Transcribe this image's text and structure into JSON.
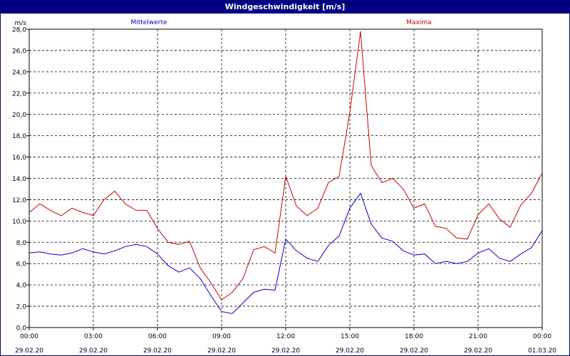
{
  "window": {
    "title": "Windgeschwindigkeit [m/s]"
  },
  "chart_data": {
    "type": "line",
    "title": "Windgeschwindigkeit [m/s]",
    "ylabel": "m/s",
    "ylim": [
      0,
      28
    ],
    "yticks": [
      "0,0",
      "2,0",
      "4,0",
      "6,0",
      "8,0",
      "10,0",
      "12,0",
      "14,0",
      "16,0",
      "18,0",
      "20,0",
      "22,0",
      "24,0",
      "26,0",
      "28,0"
    ],
    "xlim_hours": [
      0,
      24
    ],
    "xticks": [
      {
        "time": "00:00",
        "date": "29.02.20"
      },
      {
        "time": "03:00",
        "date": "29.02.20"
      },
      {
        "time": "06:00",
        "date": "29.02.20"
      },
      {
        "time": "09:00",
        "date": "29.02.20"
      },
      {
        "time": "12:00",
        "date": "29.02.20"
      },
      {
        "time": "15:00",
        "date": "29.02.20"
      },
      {
        "time": "18:00",
        "date": "29.02.20"
      },
      {
        "time": "21:00",
        "date": "29.02.20"
      },
      {
        "time": "00:00",
        "date": "01.03.20"
      }
    ],
    "grid": true,
    "legend_position": "top",
    "series": [
      {
        "name": "Mittelwerte",
        "color": "#0000cc",
        "x": [
          0,
          0.5,
          1,
          1.5,
          2,
          2.5,
          3,
          3.5,
          4,
          4.5,
          5,
          5.5,
          6,
          6.5,
          7,
          7.5,
          8,
          8.5,
          9,
          9.5,
          10,
          10.5,
          11,
          11.5,
          12,
          12.5,
          13,
          13.5,
          14,
          14.5,
          15,
          15.5,
          16,
          16.5,
          17,
          17.5,
          18,
          18.5,
          19,
          19.5,
          20,
          20.5,
          21,
          21.5,
          22,
          22.5,
          23,
          23.5,
          24
        ],
        "values": [
          7.0,
          7.1,
          6.9,
          6.8,
          7.0,
          7.4,
          7.1,
          6.9,
          7.2,
          7.6,
          7.8,
          7.6,
          6.9,
          5.8,
          5.2,
          5.6,
          4.6,
          3.0,
          1.5,
          1.3,
          2.3,
          3.3,
          3.6,
          3.5,
          8.3,
          7.2,
          6.5,
          6.2,
          7.7,
          8.6,
          11.2,
          12.6,
          9.7,
          8.4,
          8.1,
          7.2,
          6.8,
          6.9,
          6.0,
          6.2,
          6.0,
          6.2,
          7.0,
          7.4,
          6.5,
          6.2,
          6.9,
          7.5,
          9.1
        ]
      },
      {
        "name": "Maxima",
        "color": "#cc0000",
        "x": [
          0,
          0.5,
          1,
          1.5,
          2,
          2.5,
          3,
          3.5,
          4,
          4.5,
          5,
          5.5,
          6,
          6.5,
          7,
          7.5,
          8,
          8.5,
          9,
          9.5,
          10,
          10.5,
          11,
          11.5,
          12,
          12.5,
          13,
          13.5,
          14,
          14.5,
          15,
          15.5,
          16,
          16.5,
          17,
          17.5,
          18,
          18.5,
          19,
          19.5,
          20,
          20.5,
          21,
          21.5,
          22,
          22.5,
          23,
          23.5,
          24
        ],
        "values": [
          10.8,
          11.6,
          11.0,
          10.5,
          11.2,
          10.8,
          10.5,
          12.0,
          12.8,
          11.6,
          11.0,
          11.0,
          9.3,
          8.0,
          7.8,
          8.1,
          5.6,
          4.2,
          2.6,
          3.3,
          4.6,
          7.3,
          7.6,
          7.0,
          14.2,
          11.4,
          10.5,
          11.2,
          13.6,
          14.2,
          20.2,
          27.8,
          15.2,
          13.6,
          14.0,
          13.0,
          11.2,
          11.6,
          9.5,
          9.3,
          8.4,
          8.3,
          10.6,
          11.6,
          10.2,
          9.4,
          11.5,
          12.6,
          14.5
        ]
      }
    ]
  }
}
